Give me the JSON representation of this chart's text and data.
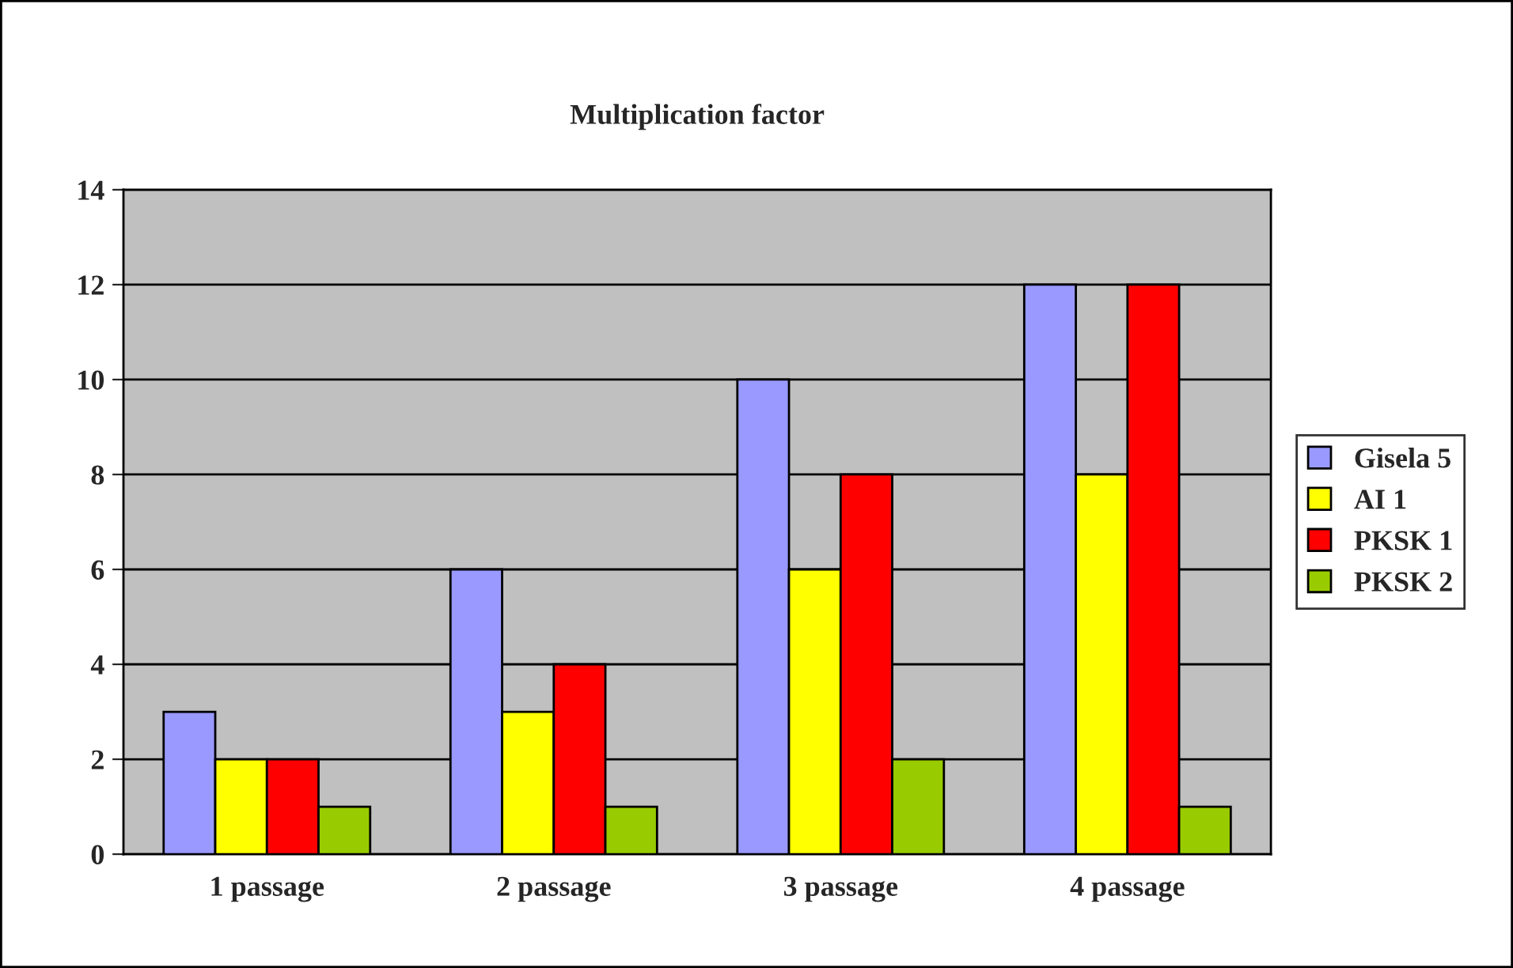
{
  "chart_data": {
    "type": "bar",
    "title": "Multiplication factor",
    "categories": [
      "1 passage",
      "2 passage",
      "3 passage",
      "4 passage"
    ],
    "series": [
      {
        "name": "Gisela 5",
        "color": "#9999ff",
        "values": [
          3,
          6,
          10,
          12
        ]
      },
      {
        "name": "AI 1",
        "color": "#ffff00",
        "values": [
          2,
          3,
          6,
          8
        ]
      },
      {
        "name": "PKSK 1",
        "color": "#ff0000",
        "values": [
          2,
          4,
          8,
          12
        ]
      },
      {
        "name": "PKSK 2",
        "color": "#99cc00",
        "values": [
          1,
          1,
          2,
          1
        ]
      }
    ],
    "ylim": [
      0,
      14
    ],
    "yticks": [
      0,
      2,
      4,
      6,
      8,
      10,
      12,
      14
    ],
    "grid": "y",
    "legend": "right"
  }
}
